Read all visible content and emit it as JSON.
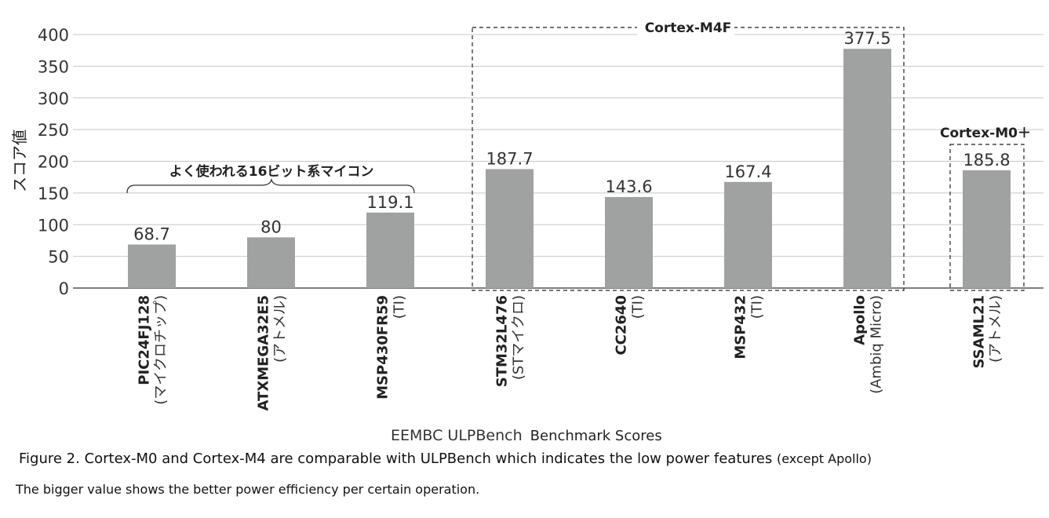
{
  "chart_data": {
    "type": "bar",
    "ylabel": "スコア値",
    "ylim": [
      0,
      400
    ],
    "yticks": [
      0,
      50,
      100,
      150,
      200,
      250,
      300,
      350,
      400
    ],
    "grid": true,
    "bar_color": "#a0a2a1",
    "categories": [
      {
        "name": "PIC24FJ128",
        "maker": "(マイクロチップ)"
      },
      {
        "name": "ATXMEGA32E5",
        "maker": "(アトメル)"
      },
      {
        "name": "MSP430FR59",
        "maker": "(TI)"
      },
      {
        "name": "STM32L476",
        "maker": "(STマイクロ)"
      },
      {
        "name": "CC2640",
        "maker": "(TI)"
      },
      {
        "name": "MSP432",
        "maker": "(TI)"
      },
      {
        "name": "Apollo",
        "maker": "(Ambiq Micro)"
      },
      {
        "name": "SSAML21",
        "maker": "(アトメル)"
      }
    ],
    "values": [
      68.7,
      80,
      119.1,
      187.7,
      143.6,
      167.4,
      377.5,
      185.8
    ],
    "value_labels": [
      "68.7",
      "80",
      "119.1",
      "187.7",
      "143.6",
      "167.4",
      "377.5",
      "185.8"
    ],
    "annotations": {
      "group_16bit": "よく使われる16ビット系マイコン",
      "group_m4f": "Cortex-M4F",
      "group_m0plus": "Cortex-M0＋"
    }
  },
  "captions": {
    "x_title": "EEMBC ULPBench",
    "x_title_sub": "Benchmark Scores",
    "figure": "Figure 2. Cortex-M0 and Cortex-M4 are comparable with ULPBench which indicates the low power features",
    "figure_tail": "(except Apollo)",
    "note": "The bigger value shows the better power efficiency per certain operation."
  }
}
